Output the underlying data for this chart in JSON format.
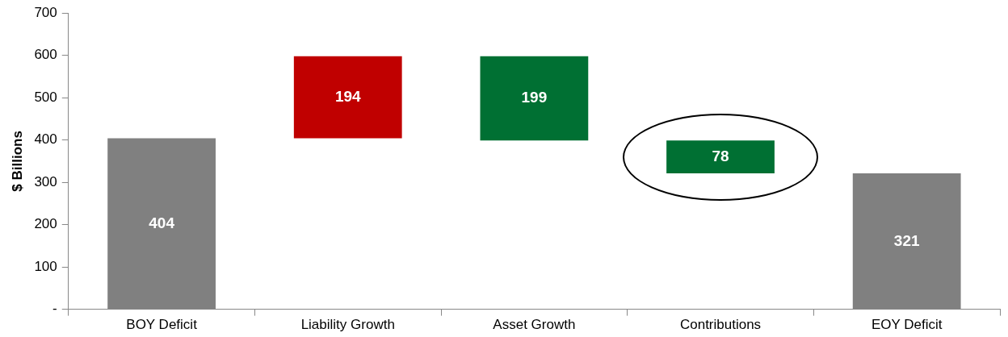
{
  "chart_data": {
    "type": "bar",
    "ylabel": "$ Billions",
    "categories": [
      "BOY Deficit",
      "Liability Growth",
      "Asset Growth",
      "Contributions",
      "EOY Deficit"
    ],
    "values": [
      404,
      194,
      199,
      78,
      321
    ],
    "base": [
      0,
      404,
      399,
      321,
      0
    ],
    "colors": [
      "#808080",
      "#c00000",
      "#007033",
      "#007033",
      "#808080"
    ],
    "ylim": [
      0,
      700
    ],
    "yticks": [
      {
        "value": 0,
        "label": "-"
      },
      100,
      200,
      300,
      400,
      500,
      600,
      700
    ],
    "grid": false,
    "legend": false,
    "data_labels": true
  }
}
